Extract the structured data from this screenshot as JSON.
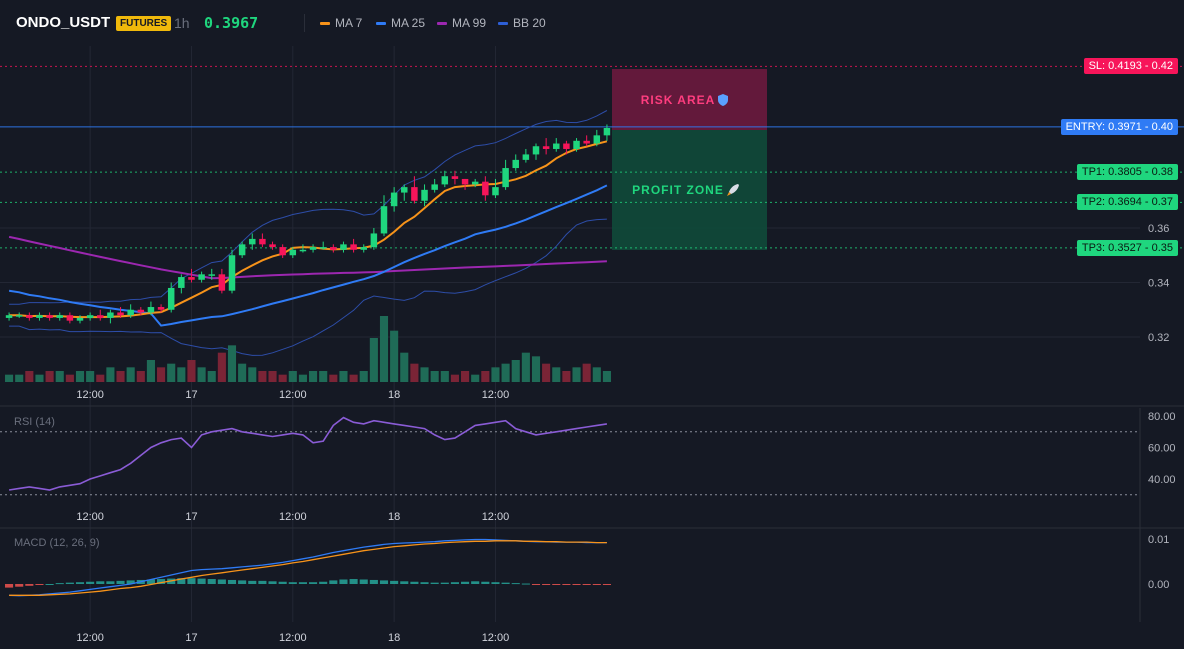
{
  "header": {
    "symbol": "ONDO_USDT",
    "badge": "FUTURES",
    "timeframe": "1h",
    "last_price": "0.3967",
    "legend": [
      {
        "label": "MA 7",
        "color": "#f7931a"
      },
      {
        "label": "MA 25",
        "color": "#2f7bf5"
      },
      {
        "label": "MA 99",
        "color": "#9c27b0"
      },
      {
        "label": "BB 20",
        "color": "#2d5fd6"
      }
    ]
  },
  "zones": {
    "risk_label": "RISK AREA",
    "profit_label": "PROFIT ZONE"
  },
  "levels": [
    {
      "label": "SL: 0.4193",
      "axis": "0.42",
      "value": 0.4193,
      "color": "#f7155a",
      "text_color": "#ffffff"
    },
    {
      "label": "ENTRY: 0.3971",
      "axis": "0.40",
      "value": 0.3971,
      "color": "#2f7bf5",
      "text_color": "#ffffff"
    },
    {
      "label": "TP1: 0.3805",
      "axis": "0.38",
      "value": 0.3805,
      "color": "#1fd67e",
      "text_color": "#0b1a12"
    },
    {
      "label": "TP2: 0.3694",
      "axis": "0.37",
      "value": 0.3694,
      "color": "#1fd67e",
      "text_color": "#0b1a12"
    },
    {
      "label": "TP3: 0.3527",
      "axis": "0.35",
      "value": 0.3527,
      "color": "#1fd67e",
      "text_color": "#0b1a12"
    }
  ],
  "chart_data": {
    "type": "candlestick",
    "x_tick_labels": [
      "12:00",
      "17",
      "12:00",
      "18",
      "12:00"
    ],
    "price_axis_labels": [
      "0.36",
      "0.34",
      "0.32"
    ],
    "price_axis_values": [
      0.36,
      0.34,
      0.32
    ],
    "ylim": [
      0.3,
      0.42
    ],
    "candle_count": 60,
    "candles": [
      [
        0.327,
        0.328,
        0.326,
        0.329
      ],
      [
        0.328,
        0.328,
        0.327,
        0.329
      ],
      [
        0.328,
        0.327,
        0.326,
        0.329
      ],
      [
        0.327,
        0.328,
        0.326,
        0.329
      ],
      [
        0.328,
        0.327,
        0.326,
        0.329
      ],
      [
        0.327,
        0.328,
        0.326,
        0.329
      ],
      [
        0.328,
        0.326,
        0.325,
        0.329
      ],
      [
        0.326,
        0.327,
        0.325,
        0.328
      ],
      [
        0.327,
        0.328,
        0.326,
        0.329
      ],
      [
        0.328,
        0.327,
        0.326,
        0.33
      ],
      [
        0.327,
        0.329,
        0.325,
        0.33
      ],
      [
        0.329,
        0.328,
        0.327,
        0.331
      ],
      [
        0.328,
        0.33,
        0.327,
        0.332
      ],
      [
        0.33,
        0.329,
        0.328,
        0.331
      ],
      [
        0.329,
        0.331,
        0.328,
        0.333
      ],
      [
        0.331,
        0.33,
        0.329,
        0.332
      ],
      [
        0.33,
        0.338,
        0.329,
        0.34
      ],
      [
        0.338,
        0.342,
        0.336,
        0.343
      ],
      [
        0.342,
        0.341,
        0.34,
        0.345
      ],
      [
        0.341,
        0.343,
        0.34,
        0.344
      ],
      [
        0.343,
        0.343,
        0.341,
        0.345
      ],
      [
        0.343,
        0.337,
        0.336,
        0.345
      ],
      [
        0.337,
        0.35,
        0.336,
        0.352
      ],
      [
        0.35,
        0.354,
        0.349,
        0.355
      ],
      [
        0.354,
        0.356,
        0.352,
        0.358
      ],
      [
        0.356,
        0.354,
        0.353,
        0.358
      ],
      [
        0.354,
        0.353,
        0.352,
        0.355
      ],
      [
        0.353,
        0.35,
        0.349,
        0.354
      ],
      [
        0.35,
        0.352,
        0.349,
        0.353
      ],
      [
        0.352,
        0.352,
        0.351,
        0.354
      ],
      [
        0.352,
        0.353,
        0.351,
        0.354
      ],
      [
        0.353,
        0.353,
        0.352,
        0.355
      ],
      [
        0.353,
        0.352,
        0.351,
        0.354
      ],
      [
        0.352,
        0.354,
        0.351,
        0.355
      ],
      [
        0.354,
        0.352,
        0.351,
        0.356
      ],
      [
        0.352,
        0.353,
        0.351,
        0.354
      ],
      [
        0.353,
        0.358,
        0.352,
        0.36
      ],
      [
        0.358,
        0.368,
        0.357,
        0.372
      ],
      [
        0.368,
        0.373,
        0.366,
        0.375
      ],
      [
        0.373,
        0.375,
        0.37,
        0.376
      ],
      [
        0.375,
        0.37,
        0.369,
        0.379
      ],
      [
        0.37,
        0.374,
        0.368,
        0.376
      ],
      [
        0.374,
        0.376,
        0.373,
        0.378
      ],
      [
        0.376,
        0.379,
        0.375,
        0.381
      ],
      [
        0.379,
        0.378,
        0.376,
        0.381
      ],
      [
        0.378,
        0.376,
        0.374,
        0.378
      ],
      [
        0.376,
        0.377,
        0.375,
        0.378
      ],
      [
        0.377,
        0.372,
        0.37,
        0.379
      ],
      [
        0.372,
        0.375,
        0.371,
        0.378
      ],
      [
        0.375,
        0.382,
        0.374,
        0.385
      ],
      [
        0.382,
        0.385,
        0.381,
        0.387
      ],
      [
        0.385,
        0.387,
        0.384,
        0.389
      ],
      [
        0.387,
        0.39,
        0.385,
        0.391
      ],
      [
        0.39,
        0.389,
        0.387,
        0.393
      ],
      [
        0.389,
        0.391,
        0.388,
        0.393
      ],
      [
        0.391,
        0.389,
        0.387,
        0.392
      ],
      [
        0.389,
        0.392,
        0.388,
        0.393
      ],
      [
        0.392,
        0.391,
        0.39,
        0.394
      ],
      [
        0.391,
        0.394,
        0.39,
        0.396
      ],
      [
        0.394,
        0.3967,
        0.392,
        0.398
      ]
    ],
    "volume": [
      2,
      2,
      3,
      2,
      3,
      3,
      2,
      3,
      3,
      2,
      4,
      3,
      4,
      3,
      6,
      4,
      5,
      4,
      6,
      4,
      3,
      8,
      10,
      5,
      4,
      3,
      3,
      2,
      3,
      2,
      3,
      3,
      2,
      3,
      2,
      3,
      12,
      18,
      14,
      8,
      5,
      4,
      3,
      3,
      2,
      3,
      2,
      3,
      4,
      5,
      6,
      8,
      7,
      5,
      4,
      3,
      4,
      5,
      4,
      3
    ],
    "rsi": {
      "label": "RSI (14)",
      "axis_labels": [
        "80.00",
        "60.00",
        "40.00"
      ],
      "axis_values": [
        80,
        60,
        40
      ],
      "ylim": [
        25,
        85
      ],
      "bands": [
        70,
        30
      ],
      "values": [
        33,
        34,
        35,
        34,
        33,
        35,
        36,
        37,
        40,
        42,
        44,
        46,
        50,
        55,
        60,
        63,
        65,
        66,
        60,
        68,
        70,
        71,
        72,
        70,
        69,
        68,
        67,
        68,
        69,
        68,
        63,
        64,
        74,
        79,
        76,
        75,
        77,
        76,
        75,
        74,
        73,
        72,
        68,
        65,
        66,
        70,
        74,
        75,
        76,
        77,
        72,
        70,
        68,
        69,
        70,
        71,
        72,
        73,
        74,
        75
      ]
    },
    "macd": {
      "label": "MACD (12, 26, 9)",
      "axis_labels": [
        "0.01",
        "0.00"
      ],
      "axis_values": [
        0.01,
        0.0
      ],
      "ylim": [
        -0.006,
        0.012
      ],
      "hist": [
        -0.0008,
        -0.0006,
        -0.0004,
        -0.0002,
        0.0,
        0.0002,
        0.0003,
        0.0004,
        0.0005,
        0.0006,
        0.0006,
        0.0007,
        0.0008,
        0.0009,
        0.001,
        0.0011,
        0.0012,
        0.0013,
        0.0013,
        0.0012,
        0.0011,
        0.001,
        0.0009,
        0.0008,
        0.0007,
        0.0007,
        0.0006,
        0.0005,
        0.0004,
        0.0004,
        0.0004,
        0.0005,
        0.0008,
        0.001,
        0.0011,
        0.001,
        0.0009,
        0.0008,
        0.0007,
        0.0006,
        0.0005,
        0.0004,
        0.0003,
        0.0003,
        0.0004,
        0.0005,
        0.0006,
        0.0005,
        0.0004,
        0.0003,
        0.0002,
        0.0001,
        -0.0001,
        -0.0001,
        -0.0001,
        -0.0001,
        -0.0001,
        -0.0001,
        -0.0001,
        -0.0001
      ],
      "macd_line": [
        -0.0025,
        -0.0026,
        -0.0025,
        -0.0024,
        -0.0022,
        -0.002,
        -0.0018,
        -0.0015,
        -0.0012,
        -0.0009,
        -0.0006,
        -0.0003,
        0.0,
        0.0005,
        0.001,
        0.0015,
        0.002,
        0.0025,
        0.003,
        0.0032,
        0.0033,
        0.0034,
        0.0036,
        0.0038,
        0.004,
        0.0042,
        0.0045,
        0.0048,
        0.0052,
        0.0056,
        0.006,
        0.0065,
        0.007,
        0.0074,
        0.0078,
        0.0082,
        0.0085,
        0.0088,
        0.009,
        0.0091,
        0.0092,
        0.0093,
        0.0094,
        0.0096,
        0.0097,
        0.0098,
        0.0099,
        0.0099,
        0.0098,
        0.0097,
        0.0096,
        0.0095,
        0.0094,
        0.0094,
        0.0093,
        0.0093,
        0.0093,
        0.0092,
        0.0092,
        0.0092
      ],
      "signal_line": [
        -0.0025,
        -0.0025,
        -0.0025,
        -0.0025,
        -0.0024,
        -0.0023,
        -0.0022,
        -0.002,
        -0.0018,
        -0.0016,
        -0.0013,
        -0.001,
        -0.0008,
        -0.0005,
        -0.0001,
        0.0003,
        0.0007,
        0.0011,
        0.0015,
        0.0019,
        0.0022,
        0.0025,
        0.0028,
        0.0031,
        0.0034,
        0.0037,
        0.004,
        0.0043,
        0.0047,
        0.005,
        0.0054,
        0.0058,
        0.0062,
        0.0066,
        0.007,
        0.0074,
        0.0077,
        0.008,
        0.0083,
        0.0085,
        0.0087,
        0.0089,
        0.009,
        0.0092,
        0.0093,
        0.0094,
        0.0095,
        0.0095,
        0.0096,
        0.0096,
        0.0096,
        0.0095,
        0.0095,
        0.0094,
        0.0094,
        0.0093,
        0.0093,
        0.0093,
        0.0092,
        0.0092
      ]
    },
    "colors": {
      "up": "#1fd67e",
      "down": "#f7155a",
      "vol_up": "#1f6b57",
      "vol_down": "#7a2436",
      "ma7": "#f7931a",
      "ma25": "#2f7bf5",
      "ma99": "#9c27b0",
      "bb": "#2d4da8",
      "rsi": "#8a5cd6",
      "macd_line": "#2f7bf5",
      "signal_line": "#f7931a"
    }
  }
}
